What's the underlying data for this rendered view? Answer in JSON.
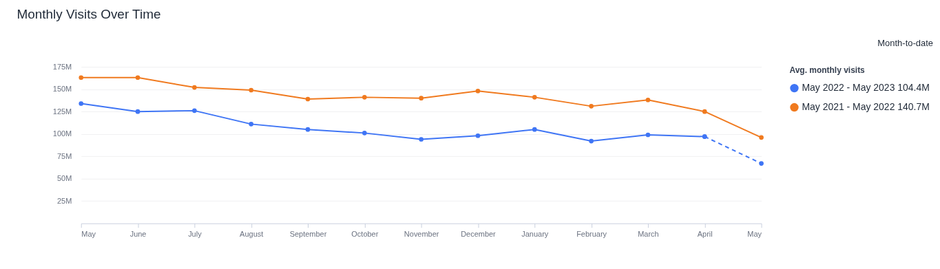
{
  "chart_data": {
    "type": "line",
    "title": "Monthly Visits Over Time",
    "legend_title": "Avg. monthly visits",
    "annotations": [
      "Month-to-date"
    ],
    "categories": [
      "May",
      "June",
      "July",
      "August",
      "September",
      "October",
      "November",
      "December",
      "January",
      "February",
      "March",
      "April",
      "May"
    ],
    "series": [
      {
        "name": "May 2022 - May 2023  104.4M",
        "color": "#3f75f5",
        "line_style": "solid",
        "values": [
          134,
          125,
          126,
          111,
          105,
          101,
          94,
          98,
          105,
          92,
          99,
          97,
          null
        ]
      },
      {
        "color": "#3f75f5",
        "line_style": "dashed",
        "values": [
          null,
          null,
          null,
          null,
          null,
          null,
          null,
          null,
          null,
          null,
          null,
          97,
          67
        ]
      },
      {
        "name": "May 2021 - May 2022  140.7M",
        "color": "#f07a1f",
        "line_style": "solid",
        "values": [
          163,
          163,
          152,
          149,
          139,
          141,
          140,
          148,
          141,
          131,
          138,
          125,
          96
        ]
      }
    ],
    "ylim": [
      0,
      175
    ],
    "yticks": [
      {
        "value": 25,
        "label": "25M"
      },
      {
        "value": 50,
        "label": "50M"
      },
      {
        "value": 75,
        "label": "75M"
      },
      {
        "value": 100,
        "label": "100M"
      },
      {
        "value": 125,
        "label": "125M"
      },
      {
        "value": 150,
        "label": "150M"
      },
      {
        "value": 175,
        "label": "175M"
      }
    ],
    "grid": "y",
    "legend": "top right",
    "marker": "circle"
  }
}
